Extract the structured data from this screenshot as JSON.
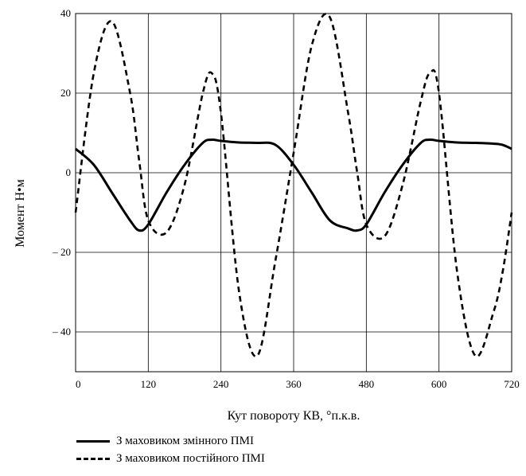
{
  "chart_data": {
    "type": "line",
    "title": "",
    "xlabel": "Кут повороту КВ, °п.к.в.",
    "ylabel": "Момент Н•м",
    "xlim": [
      0,
      720
    ],
    "ylim": [
      -50,
      40
    ],
    "xticks": [
      0,
      120,
      240,
      360,
      480,
      600,
      720
    ],
    "yticks": [
      40,
      20,
      0,
      -20,
      -40
    ],
    "xtick_labels": [
      "0",
      "120",
      "240",
      "360",
      "480",
      "600",
      "720"
    ],
    "ytick_labels": [
      "40",
      "20",
      "0",
      "– 20",
      "– 40"
    ],
    "grid": true,
    "legend_position": "bottom-left",
    "x": [
      0,
      30,
      60,
      90,
      105,
      120,
      150,
      180,
      210,
      225,
      240,
      270,
      300,
      330,
      360,
      390,
      420,
      450,
      465,
      480,
      510,
      540,
      570,
      585,
      600,
      630,
      660,
      690,
      705,
      720
    ],
    "series": [
      {
        "name": "З маховиком змінного ПМІ",
        "style": "solid",
        "color": "#000000",
        "values": [
          6,
          2,
          -5,
          -12,
          -14.5,
          -13,
          -5,
          2,
          7.5,
          8.3,
          8,
          7.6,
          7.5,
          7,
          2,
          -5,
          -12,
          -14,
          -14.5,
          -13,
          -5,
          2,
          7.5,
          8.3,
          8,
          7.6,
          7.5,
          7.3,
          7,
          6
        ]
      },
      {
        "name": "З маховиком постійного ПМІ",
        "style": "dashed",
        "color": "#000000",
        "values": [
          -10,
          25,
          38,
          20,
          3,
          -12,
          -15,
          -3,
          20,
          25,
          15,
          -30,
          -46,
          -22,
          5,
          32,
          39,
          15,
          0,
          -13,
          -16,
          -3,
          18,
          25,
          20,
          -25,
          -46,
          -35,
          -25,
          -10
        ]
      }
    ]
  }
}
